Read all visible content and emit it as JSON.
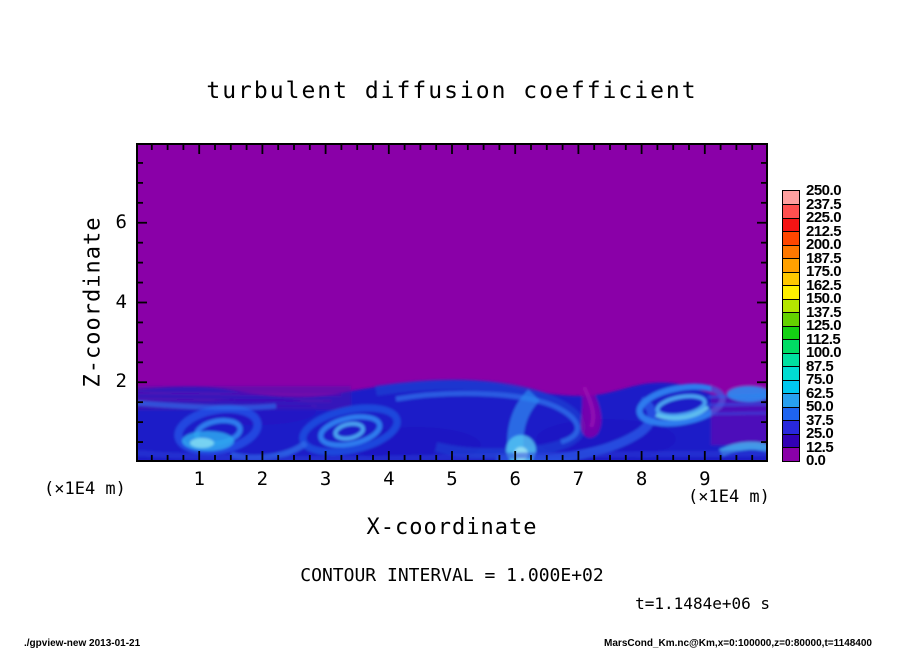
{
  "title": "turbulent diffusion coefficient",
  "axes": {
    "x_label": "X-coordinate",
    "z_label": "Z-coordinate",
    "x_unit_label": "(×1E4 m)",
    "z_unit_label": "(×1E4 m)"
  },
  "notes": {
    "contour_interval": "CONTOUR INTERVAL = 1.000E+02",
    "time": "t=1.1484e+06 s"
  },
  "footer": {
    "left": "./gpview-new  2013-01-21",
    "right": "MarsCond_Km.nc@Km,x=0:100000,z=0:80000,t=1148400"
  },
  "colorbar": {
    "labels_top_to_bottom": [
      "250.0",
      "237.5",
      "225.0",
      "212.5",
      "200.0",
      "187.5",
      "175.0",
      "162.5",
      "150.0",
      "137.5",
      "125.0",
      "112.5",
      "100.0",
      "87.5",
      "75.0",
      "62.5",
      "50.0",
      "37.5",
      "25.0",
      "12.5",
      "0.0"
    ],
    "colors_bottom_to_top": [
      "#8A00A8",
      "#3200B4",
      "#2828DC",
      "#1E64F0",
      "#28A0F0",
      "#00C8F0",
      "#00DCD2",
      "#00E0A0",
      "#00DC64",
      "#14D214",
      "#64D200",
      "#B4E600",
      "#FFF000",
      "#FFC800",
      "#FFA000",
      "#FF7800",
      "#FF4600",
      "#F51414",
      "#FF5050",
      "#FFA0A0"
    ]
  },
  "chart_data": {
    "type": "heatmap",
    "title": "turbulent diffusion coefficient",
    "xlabel": "X-coordinate",
    "ylabel": "Z-coordinate",
    "x_units_multiplier": "x1E4 m",
    "z_units_multiplier": "x1E4 m",
    "x_range_m": [
      0,
      100000
    ],
    "z_range_m": [
      0,
      80000
    ],
    "x_ticks": [
      1,
      2,
      3,
      4,
      5,
      6,
      7,
      8,
      9
    ],
    "z_ticks": [
      2,
      4,
      6
    ],
    "x_minor_step": 0.25,
    "z_minor_step": 0.5,
    "contour_interval": "1.000E+02",
    "time_seconds": 1148400,
    "levels": [
      0,
      12.5,
      25,
      37.5,
      50,
      62.5,
      75,
      87.5,
      100,
      112.5,
      125,
      137.5,
      150,
      162.5,
      175,
      187.5,
      200,
      212.5,
      225,
      237.5,
      250
    ],
    "legend_position": "right-colorbar",
    "grid": false,
    "field_summary": {
      "upper_region": {
        "z_above_x1E4_m": 2.05,
        "value_bin": "0.0-12.5",
        "color": "#8A00A8",
        "description": "uniform low diffusion (purple) over most of domain"
      },
      "boundary_layer": {
        "z_below_x1E4_m": 2.05,
        "value_bins": "12.5-75",
        "colors": [
          "#3200B4",
          "#2828DC",
          "#1E64F0",
          "#28A0F0"
        ],
        "description": "turbulent eddies and swirls in blue shades near surface"
      },
      "bright_patches": {
        "value_bins": "62.5-100",
        "colors": [
          "#00C8F0"
        ],
        "approx_x_x1E4_m": [
          1.1,
          6.1,
          8.9
        ],
        "description": "localized cyan maxima near surface"
      }
    }
  }
}
